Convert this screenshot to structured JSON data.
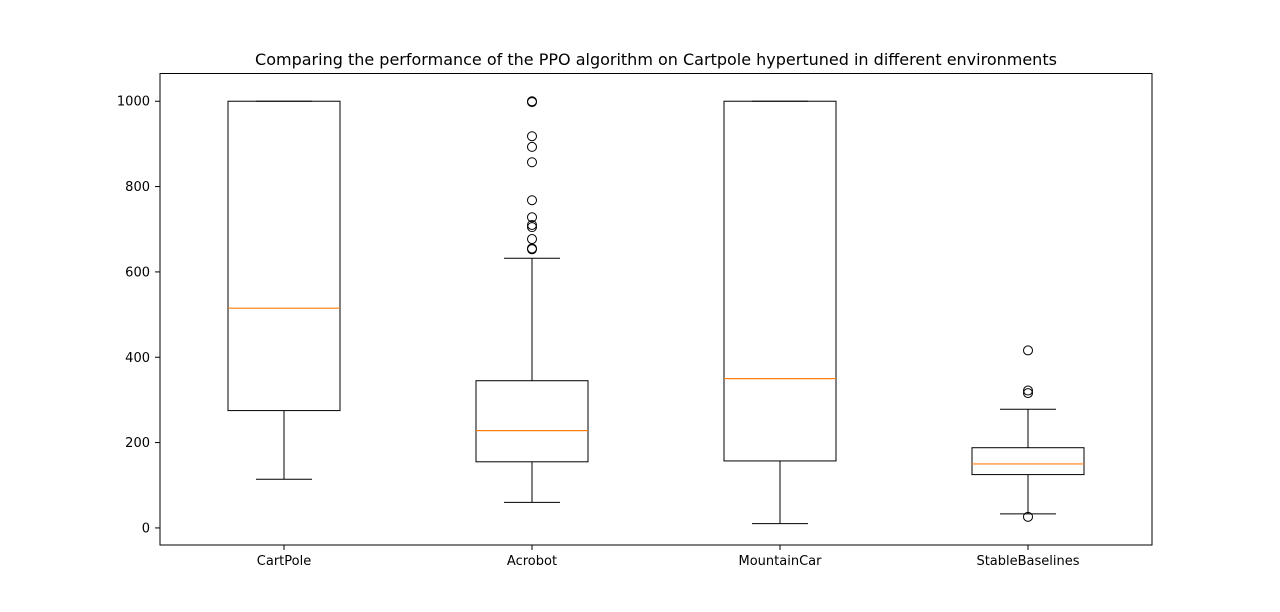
{
  "chart_data": {
    "type": "box",
    "title": "Comparing the performance of the PPO algorithm on Cartpole hypertuned in different environments",
    "xlabel": "",
    "ylabel": "",
    "ylim": [
      -40,
      1065
    ],
    "yticks": [
      0,
      200,
      400,
      600,
      800,
      1000
    ],
    "grid": false,
    "colors": {
      "box": "#000000",
      "median": "#ff7f0e",
      "flier": "#000000"
    },
    "categories": [
      "CartPole",
      "Acrobot",
      "MountainCar",
      "StableBaselines"
    ],
    "boxes": [
      {
        "category": "CartPole",
        "whisker_low": 114,
        "q1": 275,
        "median": 515,
        "q3": 1000,
        "whisker_high": 1000,
        "fliers": []
      },
      {
        "category": "Acrobot",
        "whisker_low": 60,
        "q1": 155,
        "median": 228,
        "q3": 345,
        "whisker_high": 632,
        "fliers": [
          653,
          655,
          677,
          705,
          710,
          728,
          768,
          857,
          893,
          918,
          998,
          1000
        ]
      },
      {
        "category": "MountainCar",
        "whisker_low": 10,
        "q1": 157,
        "median": 350,
        "q3": 1000,
        "whisker_high": 1000,
        "fliers": []
      },
      {
        "category": "StableBaselines",
        "whisker_low": 33,
        "q1": 125,
        "median": 150,
        "q3": 188,
        "whisker_high": 278,
        "fliers": [
          26,
          316,
          322,
          416
        ]
      }
    ]
  }
}
